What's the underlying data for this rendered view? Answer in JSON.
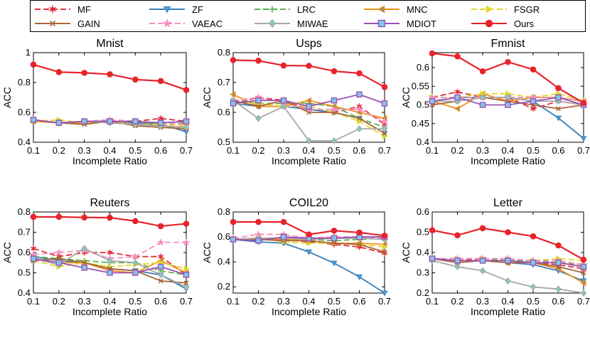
{
  "legend": [
    {
      "name": "MF",
      "color": "#e0303a",
      "dash": "8,4",
      "marker": "star"
    },
    {
      "name": "ZF",
      "color": "#3a7fb8",
      "dash": "",
      "marker": "tri-down"
    },
    {
      "name": "LRC",
      "color": "#52b448",
      "dash": "8,4",
      "marker": "plus"
    },
    {
      "name": "MNC",
      "color": "#f0901a",
      "dash": "",
      "marker": "tri-left"
    },
    {
      "name": "FSGR",
      "color": "#e2d828",
      "dash": "8,4",
      "marker": "tri-right"
    },
    {
      "name": "GAIN",
      "color": "#a9643a",
      "dash": "",
      "marker": "x"
    },
    {
      "name": "VAEAC",
      "color": "#f590c0",
      "dash": "8,4",
      "marker": "star5"
    },
    {
      "name": "MIWAE",
      "color": "#a7a7a7",
      "dash": "",
      "marker": "diamond"
    },
    {
      "name": "MDIOT",
      "color": "#9c4fb0",
      "dash": "",
      "marker": "square"
    },
    {
      "name": "Ours",
      "color": "#e8232a",
      "dash": "",
      "marker": "circle"
    }
  ],
  "chart_data": [
    {
      "type": "line",
      "title": "Mnist",
      "xlabel": "Incomplete Ratio",
      "ylabel": "ACC",
      "x": [
        0.1,
        0.2,
        0.3,
        0.4,
        0.5,
        0.6,
        0.7
      ],
      "xticks": [
        "0.1",
        "0.2",
        "0.3",
        "0.4",
        "0.5",
        "0.6",
        "0.7"
      ],
      "ylim": [
        0.4,
        1.0
      ],
      "yticks": [
        0.4,
        0.6,
        0.8,
        1.0
      ],
      "yticklabels": [
        "0.4",
        "0.6",
        "0.8",
        "1"
      ],
      "series": [
        {
          "name": "MF",
          "values": [
            0.55,
            0.53,
            0.54,
            0.55,
            0.54,
            0.56,
            0.54
          ]
        },
        {
          "name": "ZF",
          "values": [
            0.55,
            0.53,
            0.54,
            0.54,
            0.53,
            0.52,
            0.47
          ]
        },
        {
          "name": "LRC",
          "values": [
            0.55,
            0.53,
            0.54,
            0.55,
            0.54,
            0.52,
            0.53
          ]
        },
        {
          "name": "MNC",
          "values": [
            0.54,
            0.53,
            0.53,
            0.54,
            0.52,
            0.51,
            0.5
          ]
        },
        {
          "name": "FSGR",
          "values": [
            0.54,
            0.55,
            0.53,
            0.54,
            0.52,
            0.52,
            0.51
          ]
        },
        {
          "name": "GAIN",
          "values": [
            0.55,
            0.53,
            0.52,
            0.54,
            0.51,
            0.5,
            0.49
          ]
        },
        {
          "name": "VAEAC",
          "values": [
            0.55,
            0.53,
            0.54,
            0.55,
            0.54,
            0.53,
            0.52
          ]
        },
        {
          "name": "MIWAE",
          "values": [
            0.55,
            0.53,
            0.54,
            0.53,
            0.52,
            0.51,
            0.5
          ]
        },
        {
          "name": "MDIOT",
          "values": [
            0.55,
            0.53,
            0.54,
            0.54,
            0.54,
            0.53,
            0.54
          ]
        },
        {
          "name": "Ours",
          "values": [
            0.92,
            0.87,
            0.865,
            0.855,
            0.82,
            0.81,
            0.75
          ]
        }
      ]
    },
    {
      "type": "line",
      "title": "Usps",
      "xlabel": "Incomplete Ratio",
      "ylabel": "ACC",
      "x": [
        0.1,
        0.2,
        0.3,
        0.4,
        0.5,
        0.6,
        0.7
      ],
      "xticks": [
        "0.1",
        "0.2",
        "0.3",
        "0.4",
        "0.5",
        "0.6",
        "0.7"
      ],
      "ylim": [
        0.5,
        0.8
      ],
      "yticks": [
        0.5,
        0.6,
        0.7,
        0.8
      ],
      "yticklabels": [
        "0.5",
        "0.6",
        "0.7",
        "0.8"
      ],
      "series": [
        {
          "name": "MF",
          "values": [
            0.63,
            0.65,
            0.64,
            0.61,
            0.6,
            0.62,
            0.56
          ]
        },
        {
          "name": "ZF",
          "values": [
            0.63,
            0.62,
            0.62,
            0.61,
            0.6,
            0.58,
            0.53
          ]
        },
        {
          "name": "LRC",
          "values": [
            0.64,
            0.63,
            0.63,
            0.63,
            0.62,
            0.58,
            0.55
          ]
        },
        {
          "name": "MNC",
          "values": [
            0.66,
            0.62,
            0.62,
            0.64,
            0.62,
            0.6,
            0.58
          ]
        },
        {
          "name": "FSGR",
          "values": [
            0.63,
            0.63,
            0.62,
            0.62,
            0.6,
            0.57,
            0.52
          ]
        },
        {
          "name": "GAIN",
          "values": [
            0.64,
            0.62,
            0.64,
            0.6,
            0.6,
            0.58,
            0.53
          ]
        },
        {
          "name": "VAEAC",
          "values": [
            0.64,
            0.65,
            0.63,
            0.61,
            0.61,
            0.61,
            0.57
          ]
        },
        {
          "name": "MIWAE",
          "values": [
            0.64,
            0.58,
            0.62,
            0.505,
            0.505,
            0.545,
            0.545
          ]
        },
        {
          "name": "MDIOT",
          "values": [
            0.63,
            0.64,
            0.64,
            0.62,
            0.64,
            0.66,
            0.63
          ]
        },
        {
          "name": "Ours",
          "values": [
            0.775,
            0.773,
            0.757,
            0.756,
            0.738,
            0.731,
            0.685
          ]
        }
      ]
    },
    {
      "type": "line",
      "title": "Fmnist",
      "xlabel": "Incomplete Ratio",
      "ylabel": "ACC",
      "x": [
        0.1,
        0.2,
        0.3,
        0.4,
        0.5,
        0.6,
        0.7
      ],
      "xticks": [
        "0.1",
        "0.2",
        "0.3",
        "0.4",
        "0.5",
        "0.6",
        "0.7"
      ],
      "ylim": [
        0.4,
        0.64
      ],
      "yticks": [
        0.4,
        0.45,
        0.5,
        0.55,
        0.6
      ],
      "yticklabels": [
        "0.4",
        "0.45",
        "0.5",
        "0.55",
        "0.6"
      ],
      "series": [
        {
          "name": "MF",
          "values": [
            0.52,
            0.535,
            0.52,
            0.52,
            0.49,
            0.51,
            0.5
          ]
        },
        {
          "name": "ZF",
          "values": [
            0.51,
            0.52,
            0.52,
            0.52,
            0.51,
            0.465,
            0.41
          ]
        },
        {
          "name": "LRC",
          "values": [
            0.52,
            0.52,
            0.52,
            0.52,
            0.52,
            0.52,
            0.51
          ]
        },
        {
          "name": "MNC",
          "values": [
            0.51,
            0.49,
            0.53,
            0.51,
            0.52,
            0.52,
            0.51
          ]
        },
        {
          "name": "FSGR",
          "values": [
            0.52,
            0.52,
            0.53,
            0.53,
            0.52,
            0.53,
            0.51
          ]
        },
        {
          "name": "GAIN",
          "values": [
            0.5,
            0.51,
            0.52,
            0.51,
            0.5,
            0.49,
            0.5
          ]
        },
        {
          "name": "VAEAC",
          "values": [
            0.52,
            0.52,
            0.52,
            0.52,
            0.52,
            0.52,
            0.51
          ]
        },
        {
          "name": "MIWAE",
          "values": [
            0.51,
            0.51,
            0.52,
            0.52,
            0.51,
            0.51,
            0.5
          ]
        },
        {
          "name": "MDIOT",
          "values": [
            0.51,
            0.52,
            0.5,
            0.5,
            0.51,
            0.52,
            0.5
          ]
        },
        {
          "name": "Ours",
          "values": [
            0.638,
            0.63,
            0.59,
            0.615,
            0.595,
            0.545,
            0.505
          ]
        }
      ]
    },
    {
      "type": "line",
      "title": "Reuters",
      "xlabel": "Incomplete Ratio",
      "ylabel": "ACC",
      "x": [
        0.1,
        0.2,
        0.3,
        0.4,
        0.5,
        0.6,
        0.7
      ],
      "xticks": [
        "0.1",
        "0.2",
        "0.3",
        "0.4",
        "0.5",
        "0.6",
        "0.7"
      ],
      "ylim": [
        0.4,
        0.8
      ],
      "yticks": [
        0.4,
        0.5,
        0.6,
        0.7,
        0.8
      ],
      "yticklabels": [
        "0.4",
        "0.5",
        "0.6",
        "0.7",
        "0.8"
      ],
      "series": [
        {
          "name": "MF",
          "values": [
            0.62,
            0.58,
            0.6,
            0.6,
            0.58,
            0.58,
            0.49
          ]
        },
        {
          "name": "ZF",
          "values": [
            0.58,
            0.56,
            0.55,
            0.52,
            0.51,
            0.49,
            0.42
          ]
        },
        {
          "name": "LRC",
          "values": [
            0.58,
            0.57,
            0.56,
            0.55,
            0.55,
            0.51,
            0.49
          ]
        },
        {
          "name": "MNC",
          "values": [
            0.57,
            0.55,
            0.55,
            0.51,
            0.5,
            0.56,
            0.5
          ]
        },
        {
          "name": "FSGR",
          "values": [
            0.56,
            0.53,
            0.55,
            0.53,
            0.54,
            0.55,
            0.52
          ]
        },
        {
          "name": "GAIN",
          "values": [
            0.56,
            0.57,
            0.55,
            0.52,
            0.51,
            0.46,
            0.45
          ]
        },
        {
          "name": "VAEAC",
          "values": [
            0.59,
            0.6,
            0.61,
            0.57,
            0.58,
            0.65,
            0.65
          ]
        },
        {
          "name": "MIWAE",
          "values": [
            0.57,
            0.54,
            0.62,
            0.56,
            0.55,
            0.49,
            0.43
          ]
        },
        {
          "name": "MDIOT",
          "values": [
            0.57,
            0.55,
            0.525,
            0.5,
            0.5,
            0.53,
            0.49
          ]
        },
        {
          "name": "Ours",
          "values": [
            0.776,
            0.776,
            0.773,
            0.772,
            0.755,
            0.73,
            0.742
          ]
        }
      ]
    },
    {
      "type": "line",
      "title": "COIL20",
      "xlabel": "Incomplete Ratio",
      "ylabel": "ACC",
      "x": [
        0.1,
        0.2,
        0.3,
        0.4,
        0.5,
        0.6,
        0.7
      ],
      "xticks": [
        "0.1",
        "0.2",
        "0.3",
        "0.4",
        "0.5",
        "0.6",
        "0.7"
      ],
      "ylim": [
        0.15,
        0.8
      ],
      "yticks": [
        0.2,
        0.4,
        0.6,
        0.8
      ],
      "yticklabels": [
        "0.2",
        "0.4",
        "0.6",
        "0.8"
      ],
      "series": [
        {
          "name": "MF",
          "values": [
            0.58,
            0.59,
            0.58,
            0.56,
            0.54,
            0.52,
            0.47
          ]
        },
        {
          "name": "ZF",
          "values": [
            0.58,
            0.56,
            0.55,
            0.48,
            0.39,
            0.28,
            0.15
          ]
        },
        {
          "name": "LRC",
          "values": [
            0.58,
            0.59,
            0.59,
            0.58,
            0.57,
            0.58,
            0.59
          ]
        },
        {
          "name": "MNC",
          "values": [
            0.58,
            0.59,
            0.58,
            0.57,
            0.55,
            0.55,
            0.54
          ]
        },
        {
          "name": "FSGR",
          "values": [
            0.58,
            0.59,
            0.56,
            0.55,
            0.55,
            0.54,
            0.52
          ]
        },
        {
          "name": "GAIN",
          "values": [
            0.58,
            0.58,
            0.57,
            0.57,
            0.55,
            0.54,
            0.48
          ]
        },
        {
          "name": "VAEAC",
          "values": [
            0.59,
            0.62,
            0.62,
            0.59,
            0.6,
            0.6,
            0.59
          ]
        },
        {
          "name": "MIWAE",
          "values": [
            0.58,
            0.59,
            0.59,
            0.58,
            0.59,
            0.59,
            0.58
          ]
        },
        {
          "name": "MDIOT",
          "values": [
            0.58,
            0.57,
            0.6,
            0.59,
            0.59,
            0.6,
            0.6
          ]
        },
        {
          "name": "Ours",
          "values": [
            0.72,
            0.72,
            0.72,
            0.62,
            0.65,
            0.635,
            0.61
          ]
        }
      ]
    },
    {
      "type": "line",
      "title": "Letter",
      "xlabel": "Incomplete Ratio",
      "ylabel": "ACC",
      "x": [
        0.1,
        0.2,
        0.3,
        0.4,
        0.5,
        0.6,
        0.7
      ],
      "xticks": [
        "0.1",
        "0.2",
        "0.3",
        "0.4",
        "0.5",
        "0.6",
        "0.7"
      ],
      "ylim": [
        0.2,
        0.6
      ],
      "yticks": [
        0.2,
        0.3,
        0.4,
        0.5,
        0.6
      ],
      "yticklabels": [
        "0.2",
        "0.3",
        "0.4",
        "0.5",
        "0.6"
      ],
      "series": [
        {
          "name": "MF",
          "values": [
            0.37,
            0.36,
            0.37,
            0.36,
            0.35,
            0.34,
            0.32
          ]
        },
        {
          "name": "ZF",
          "values": [
            0.37,
            0.36,
            0.36,
            0.35,
            0.34,
            0.31,
            0.26
          ]
        },
        {
          "name": "LRC",
          "values": [
            0.37,
            0.37,
            0.37,
            0.36,
            0.36,
            0.35,
            0.34
          ]
        },
        {
          "name": "MNC",
          "values": [
            0.37,
            0.36,
            0.36,
            0.35,
            0.35,
            0.32,
            0.25
          ]
        },
        {
          "name": "FSGR",
          "values": [
            0.37,
            0.37,
            0.37,
            0.37,
            0.36,
            0.37,
            0.36
          ]
        },
        {
          "name": "GAIN",
          "values": [
            0.37,
            0.35,
            0.36,
            0.35,
            0.35,
            0.33,
            0.3
          ]
        },
        {
          "name": "VAEAC",
          "values": [
            0.37,
            0.37,
            0.37,
            0.37,
            0.36,
            0.36,
            0.34
          ]
        },
        {
          "name": "MIWAE",
          "values": [
            0.36,
            0.33,
            0.31,
            0.26,
            0.23,
            0.22,
            0.2
          ]
        },
        {
          "name": "MDIOT",
          "values": [
            0.37,
            0.36,
            0.36,
            0.36,
            0.35,
            0.35,
            0.33
          ]
        },
        {
          "name": "Ours",
          "values": [
            0.51,
            0.485,
            0.52,
            0.5,
            0.48,
            0.435,
            0.365
          ]
        }
      ]
    }
  ]
}
